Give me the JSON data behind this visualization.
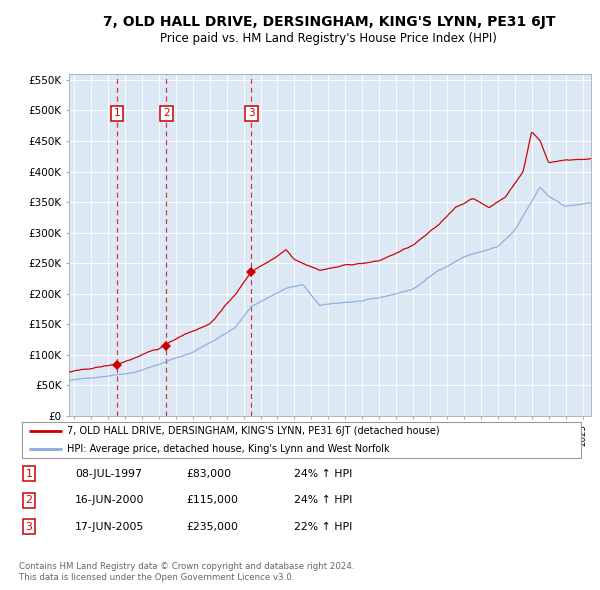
{
  "title1": "7, OLD HALL DRIVE, DERSINGHAM, KING'S LYNN, PE31 6JT",
  "title2": "Price paid vs. HM Land Registry's House Price Index (HPI)",
  "ylabel_values": [
    "£0",
    "£50K",
    "£100K",
    "£150K",
    "£200K",
    "£250K",
    "£300K",
    "£350K",
    "£400K",
    "£450K",
    "£500K",
    "£550K"
  ],
  "yticks": [
    0,
    50000,
    100000,
    150000,
    200000,
    250000,
    300000,
    350000,
    400000,
    450000,
    500000,
    550000
  ],
  "ylim": [
    0,
    560000
  ],
  "xlim_start": 1994.7,
  "xlim_end": 2025.5,
  "plot_bg_color": "#dce9f5",
  "red_line_color": "#cc0000",
  "blue_line_color": "#88aadd",
  "sale_dates": [
    1997.52,
    2000.45,
    2005.46
  ],
  "sale_prices": [
    83000,
    115000,
    235000
  ],
  "sale_labels": [
    "1",
    "2",
    "3"
  ],
  "legend_red": "7, OLD HALL DRIVE, DERSINGHAM, KING'S LYNN, PE31 6JT (detached house)",
  "legend_blue": "HPI: Average price, detached house, King's Lynn and West Norfolk",
  "transaction_rows": [
    [
      "1",
      "08-JUL-1997",
      "£83,000",
      "24% ↑ HPI"
    ],
    [
      "2",
      "16-JUN-2000",
      "£115,000",
      "24% ↑ HPI"
    ],
    [
      "3",
      "17-JUN-2005",
      "£235,000",
      "22% ↑ HPI"
    ]
  ],
  "footer1": "Contains HM Land Registry data © Crown copyright and database right 2024.",
  "footer2": "This data is licensed under the Open Government Licence v3.0."
}
